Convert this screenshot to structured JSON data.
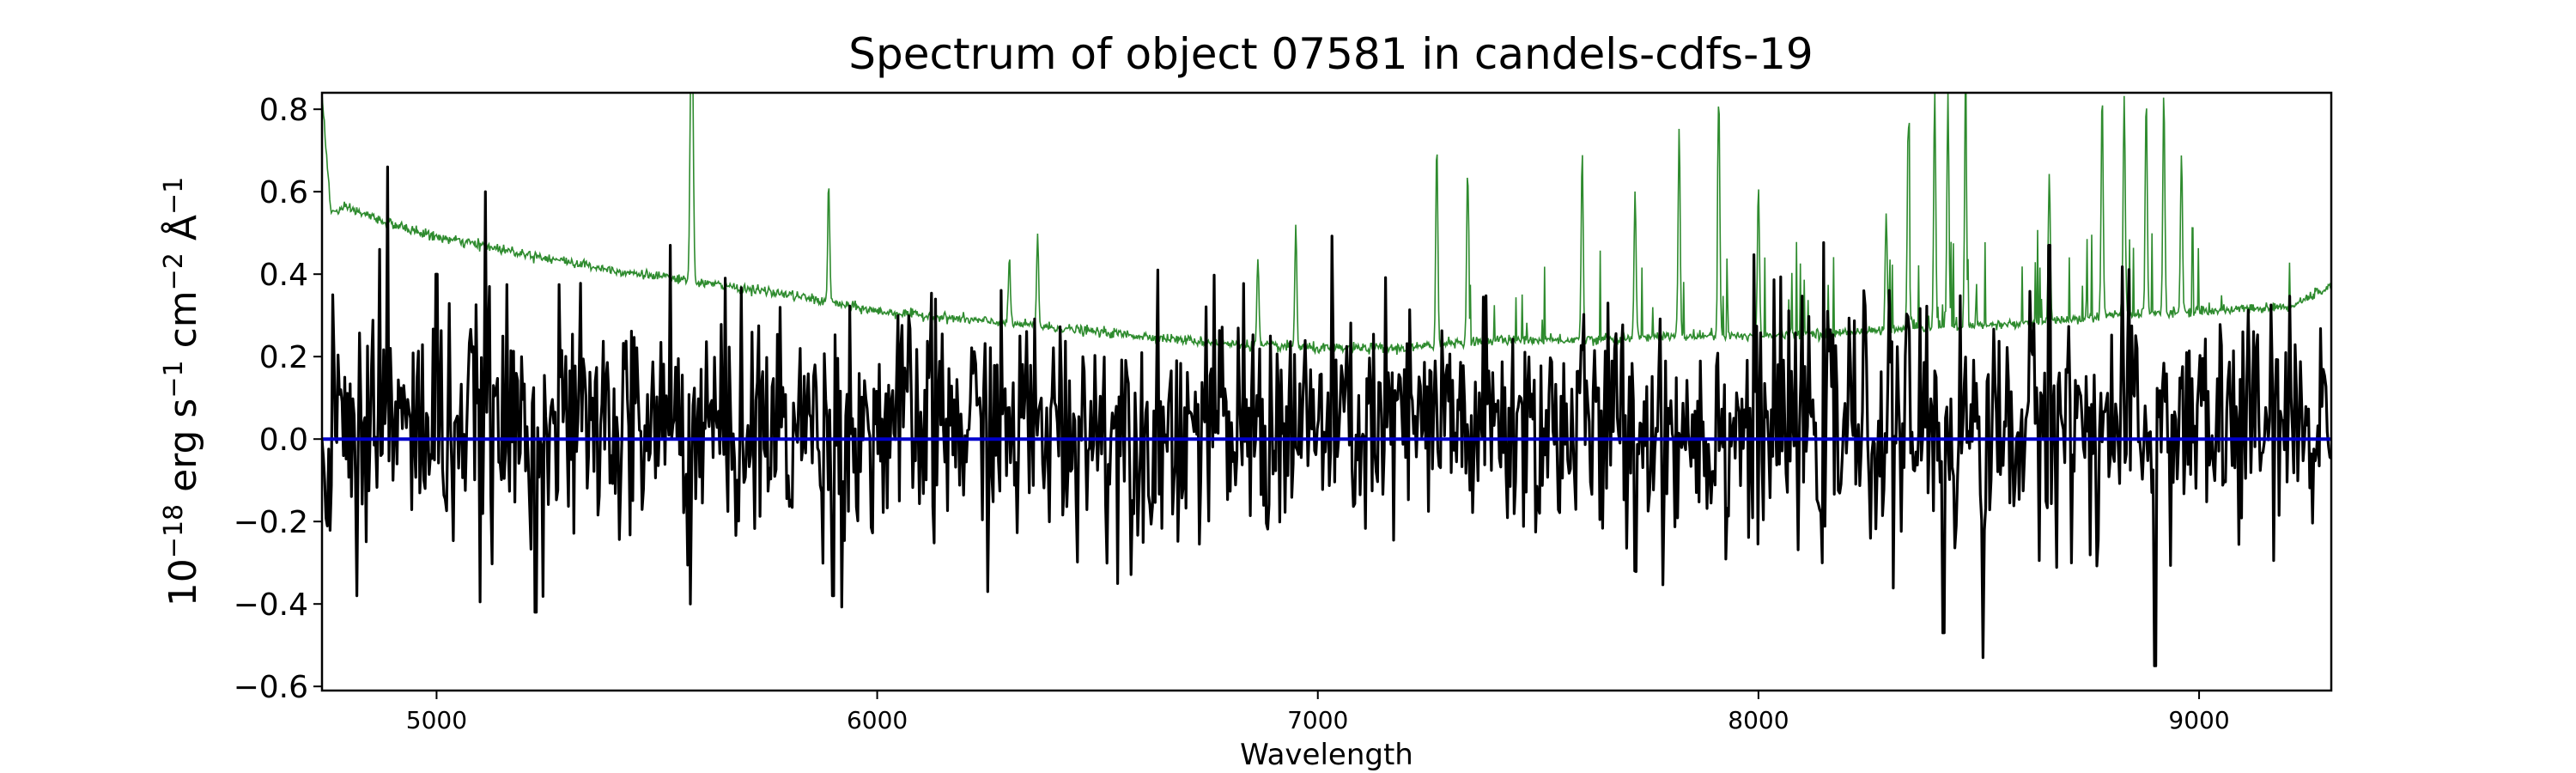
{
  "chart_data": {
    "type": "line",
    "title": "Spectrum of object 07581 in candels-cdfs-19",
    "xlabel": "Wavelength",
    "ylabel": {
      "prefix": "10",
      "exponent": "−18",
      "units": [
        {
          "text": " erg s",
          "sup": "−1"
        },
        {
          "text": " cm",
          "sup": "−2"
        },
        {
          "text": " Å",
          "sup": "−1"
        }
      ]
    },
    "xlim": [
      4740,
      9300
    ],
    "ylim": [
      -0.61,
      0.84
    ],
    "xticks": [
      5000,
      6000,
      7000,
      8000,
      9000
    ],
    "xtick_labels": [
      "5000",
      "6000",
      "7000",
      "8000",
      "9000"
    ],
    "yticks": [
      -0.6,
      -0.4,
      -0.2,
      0.0,
      0.2,
      0.4,
      0.6,
      0.8
    ],
    "ytick_labels": [
      "−0.6",
      "−0.4",
      "−0.2",
      "0.0",
      "0.2",
      "0.4",
      "0.6",
      "0.8"
    ],
    "grid": false,
    "series": [
      {
        "role": "noise",
        "color": "#2e8b2e",
        "smooth": {
          "x": [
            4740,
            4760,
            4800,
            4900,
            5000,
            5200,
            5400,
            5600,
            5800,
            6000,
            6200,
            6400,
            6600,
            6800,
            7000,
            7200,
            7400,
            7600,
            7800,
            8000,
            8200,
            8400,
            8600,
            8800,
            9000,
            9200,
            9300
          ],
          "y": [
            0.84,
            0.55,
            0.56,
            0.52,
            0.49,
            0.45,
            0.41,
            0.38,
            0.35,
            0.31,
            0.29,
            0.27,
            0.25,
            0.23,
            0.22,
            0.22,
            0.24,
            0.24,
            0.25,
            0.25,
            0.26,
            0.27,
            0.28,
            0.3,
            0.31,
            0.32,
            0.37
          ]
        },
        "peaks": [
          {
            "x": 5577,
            "y": 0.84
          },
          {
            "x": 5581,
            "y": 0.84
          },
          {
            "x": 5890,
            "y": 0.62
          },
          {
            "x": 6300,
            "y": 0.44
          },
          {
            "x": 6364,
            "y": 0.5
          },
          {
            "x": 6864,
            "y": 0.44
          },
          {
            "x": 6950,
            "y": 0.52
          },
          {
            "x": 7270,
            "y": 0.73
          },
          {
            "x": 7340,
            "y": 0.65
          },
          {
            "x": 7600,
            "y": 0.7
          },
          {
            "x": 7720,
            "y": 0.6
          },
          {
            "x": 7820,
            "y": 0.75
          },
          {
            "x": 7910,
            "y": 0.84
          },
          {
            "x": 8000,
            "y": 0.62
          },
          {
            "x": 8290,
            "y": 0.55
          },
          {
            "x": 8340,
            "y": 0.77
          },
          {
            "x": 8400,
            "y": 0.84
          },
          {
            "x": 8430,
            "y": 0.84
          },
          {
            "x": 8470,
            "y": 0.84
          },
          {
            "x": 8660,
            "y": 0.64
          },
          {
            "x": 8780,
            "y": 0.84
          },
          {
            "x": 8830,
            "y": 0.84
          },
          {
            "x": 8880,
            "y": 0.84
          },
          {
            "x": 8920,
            "y": 0.84
          },
          {
            "x": 8960,
            "y": 0.7
          }
        ]
      },
      {
        "role": "flux",
        "color": "#000000",
        "mean": 0.03,
        "sigma": 0.14,
        "highlights": [
          {
            "x": 4765,
            "y": 0.35
          },
          {
            "x": 4820,
            "y": -0.38
          },
          {
            "x": 4870,
            "y": 0.46
          },
          {
            "x": 4890,
            "y": 0.66
          },
          {
            "x": 5000,
            "y": 0.4
          },
          {
            "x": 5110,
            "y": 0.6
          },
          {
            "x": 5225,
            "y": -0.42
          },
          {
            "x": 5530,
            "y": 0.47
          },
          {
            "x": 5575,
            "y": -0.4
          },
          {
            "x": 5900,
            "y": -0.38
          },
          {
            "x": 7720,
            "y": -0.32
          },
          {
            "x": 8420,
            "y": -0.47
          },
          {
            "x": 8510,
            "y": -0.53
          },
          {
            "x": 8660,
            "y": 0.47
          },
          {
            "x": 8900,
            "y": -0.55
          },
          {
            "x": 9100,
            "y": 0.26
          }
        ]
      },
      {
        "role": "zero",
        "color": "#0000cc",
        "x": [
          4740,
          9300
        ],
        "y": [
          0.0,
          0.0
        ]
      }
    ]
  }
}
